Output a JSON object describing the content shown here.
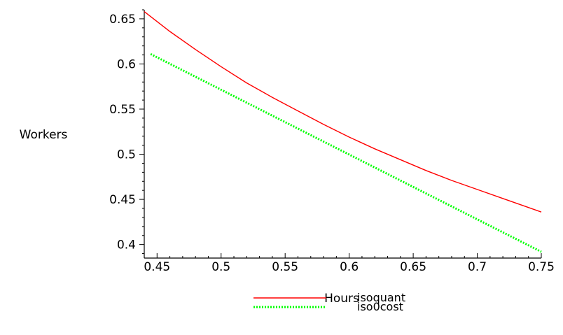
{
  "chart_data": {
    "type": "line",
    "title": "",
    "xlabel": "Hours",
    "ylabel": "Workers",
    "xlim": [
      0.44,
      0.75
    ],
    "ylim": [
      0.385,
      0.66
    ],
    "grid": false,
    "legend_position": "bottom",
    "x_ticks": [
      0.45,
      0.5,
      0.55,
      0.6,
      0.65,
      0.7,
      0.75
    ],
    "x_tick_labels": [
      "0.45",
      "0.5",
      "0.55",
      "0.6",
      "0.65",
      "0.7",
      "0.75"
    ],
    "y_ticks": [
      0.4,
      0.45,
      0.5,
      0.55,
      0.6,
      0.65
    ],
    "y_tick_labels": [
      "0.4",
      "0.45",
      "0.5",
      "0.55",
      "0.6",
      "0.65"
    ],
    "series": [
      {
        "name": "isoquant",
        "color": "#ff0000",
        "style": "solid",
        "x": [
          0.44,
          0.46,
          0.48,
          0.5,
          0.52,
          0.54,
          0.56,
          0.58,
          0.6,
          0.62,
          0.64,
          0.66,
          0.68,
          0.7,
          0.72,
          0.74,
          0.75
        ],
        "y": [
          0.658,
          0.636,
          0.616,
          0.597,
          0.579,
          0.563,
          0.548,
          0.533,
          0.519,
          0.506,
          0.494,
          0.482,
          0.471,
          0.461,
          0.451,
          0.441,
          0.436
        ]
      },
      {
        "name": "iso0cost",
        "color": "#00ff00",
        "style": "dotted",
        "x": [
          0.445,
          0.75
        ],
        "y": [
          0.611,
          0.392
        ]
      }
    ]
  }
}
